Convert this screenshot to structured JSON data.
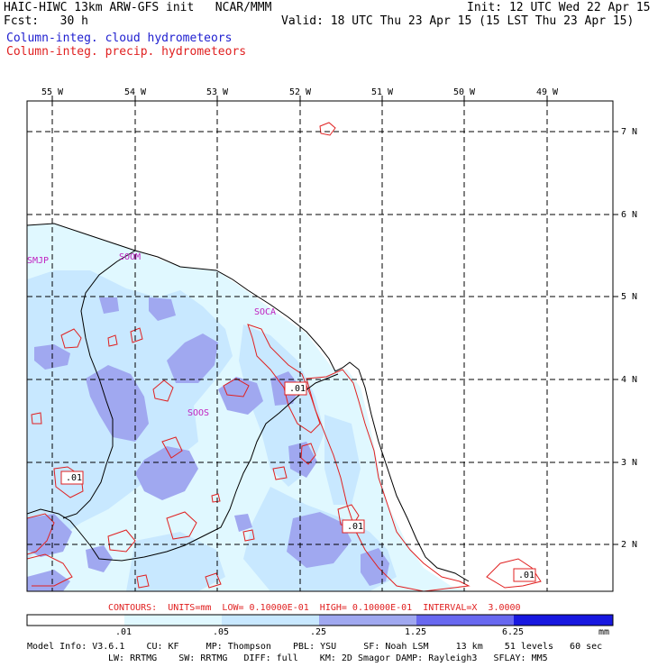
{
  "header": {
    "title": "HAIC-HIWC 13km ARW-GFS init   NCAR/MMM",
    "init": "Init: 12 UTC Wed 22 Apr 15",
    "fcst": "Fcst:   30 h",
    "valid": "Valid: 18 UTC Thu 23 Apr 15 (15 LST Thu 23 Apr 15)",
    "legend_cloud": "Column-integ. cloud hydrometeors",
    "legend_precip": "Column-integ. precip. hydrometeors"
  },
  "colors": {
    "cloud_text": "#2020d0",
    "precip": "#e02020",
    "station": "#c020c0",
    "shade1": "#e0f8ff",
    "shade2": "#c8e8ff",
    "shade3": "#a0a8f0",
    "shade4": "#6868f0",
    "shade5": "#3030e8",
    "shade6": "#1010e0"
  },
  "lon_labels": [
    "55 W",
    "54 W",
    "53 W",
    "52 W",
    "51 W",
    "50 W",
    "49 W"
  ],
  "lat_labels": [
    "7 N",
    "6 N",
    "5 N",
    "4 N",
    "3 N",
    "2 N"
  ],
  "stations": [
    "SMJP",
    "SOOM",
    "SOCA",
    "SOOS"
  ],
  "contour_labels": [
    ".01",
    ".01",
    ".01",
    ".01"
  ],
  "contours_info": "CONTOURS:  UNITS=mm  LOW= 0.10000E-01  HIGH= 0.10000E-01  INTERVAL=X  3.0000",
  "scale": {
    "ticks": [
      ".01",
      ".05",
      ".25",
      "1.25",
      "6.25"
    ],
    "unit": "mm"
  },
  "model_info": {
    "line1": "Model Info: V3.6.1    CU: KF     MP: Thompson    PBL: YSU     SF: Noah LSM     13 km    51 levels   60 sec",
    "line2": "LW: RRTMG    SW: RRTMG   DIFF: full    KM: 2D Smagor DAMP: Rayleigh3   SFLAY: MM5"
  }
}
